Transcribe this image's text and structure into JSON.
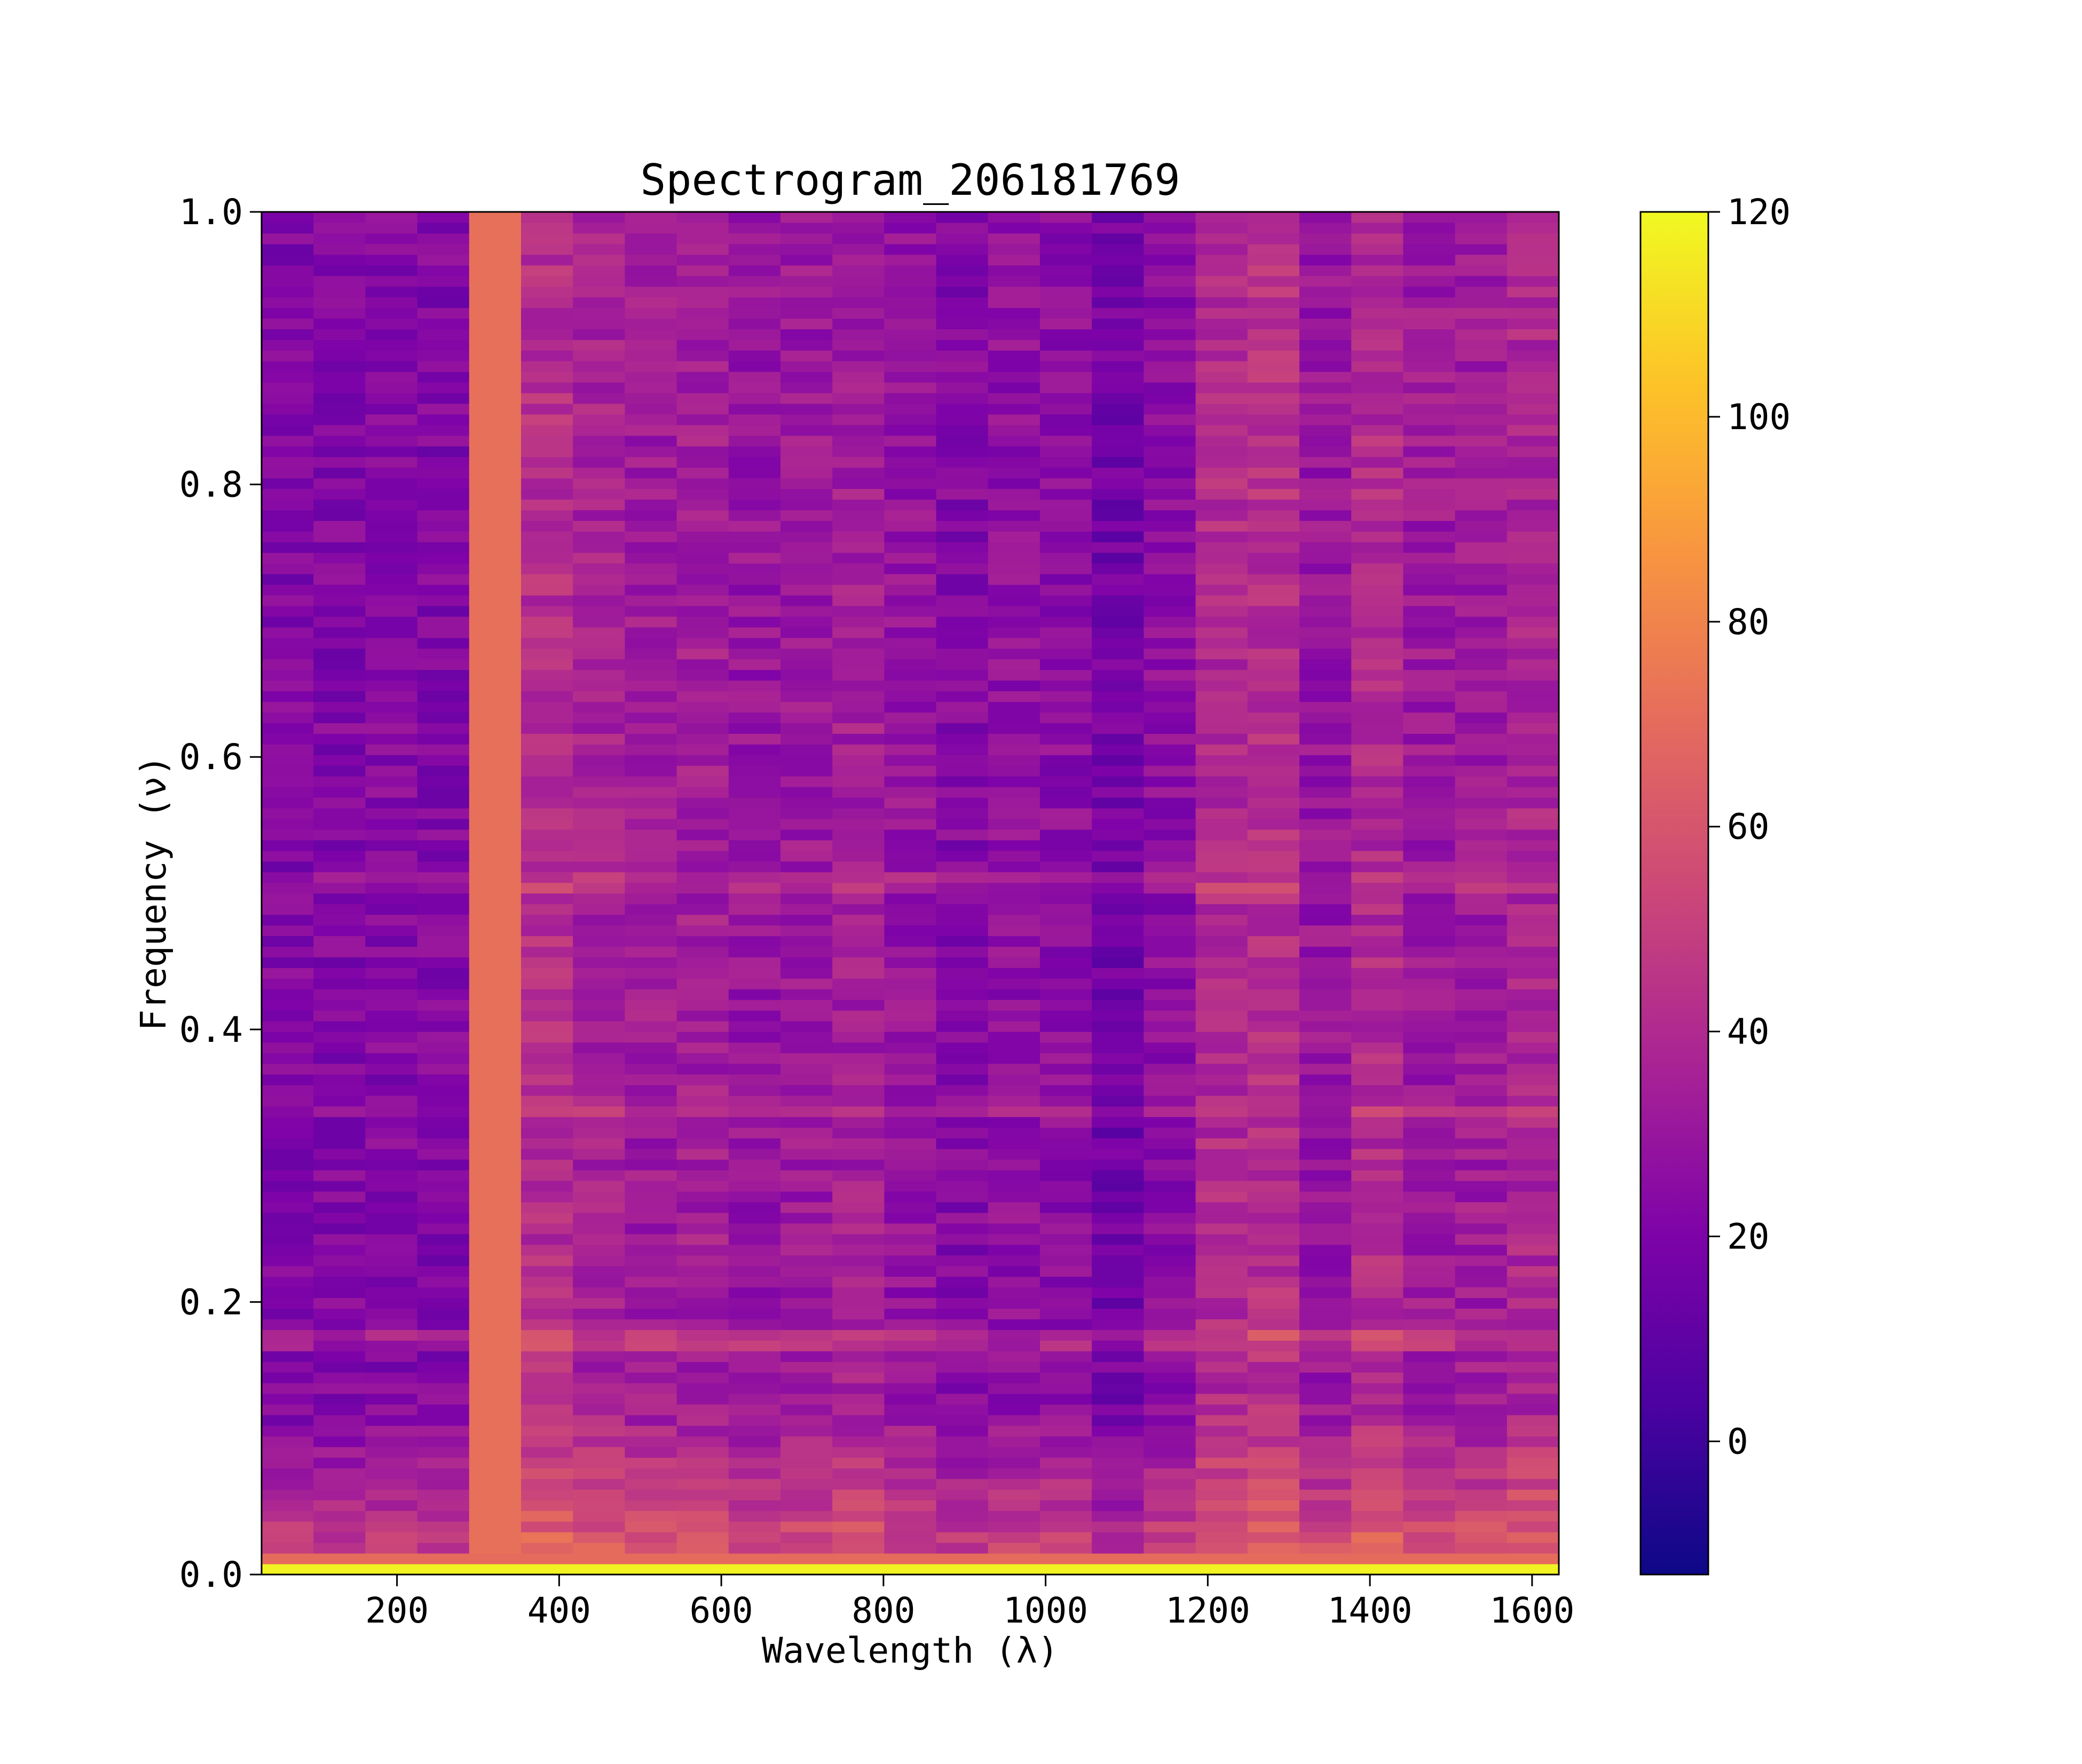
{
  "chart_data": {
    "type": "heatmap",
    "title": "Spectrogram_206181769",
    "xlabel": "Wavelength (λ)",
    "ylabel": "Frequency (ν)",
    "colormap": "plasma",
    "xlim": [
      33,
      1633
    ],
    "ylim": [
      0.0,
      1.0
    ],
    "xticks": [
      200,
      400,
      600,
      800,
      1000,
      1200,
      1400,
      1600
    ],
    "xtick_labels": [
      "200",
      "400",
      "600",
      "800",
      "1000",
      "1200",
      "1400",
      "1600"
    ],
    "yticks": [
      0.0,
      0.2,
      0.4,
      0.6,
      0.8,
      1.0
    ],
    "ytick_labels": [
      "0.0",
      "0.2",
      "0.4",
      "0.6",
      "0.8",
      "1.0"
    ],
    "colorbar": {
      "range": [
        -13,
        120
      ],
      "ticks": [
        0,
        20,
        40,
        60,
        80,
        100,
        120
      ],
      "tick_labels": [
        "0",
        "20",
        "40",
        "60",
        "80",
        "100",
        "120"
      ]
    },
    "grid": false,
    "columns": {
      "wavelength_centers": [
        65,
        129,
        193,
        257,
        321,
        385,
        449,
        513,
        577,
        641,
        705,
        769,
        833,
        897,
        961,
        1025,
        1089,
        1153,
        1217,
        1281,
        1345,
        1409,
        1473,
        1537,
        1601
      ],
      "mean_intensity": [
        22,
        22,
        23,
        22,
        72,
        42,
        36,
        33,
        34,
        30,
        31,
        34,
        29,
        23,
        27,
        26,
        17,
        26,
        40,
        43,
        30,
        40,
        32,
        33,
        38
      ]
    },
    "frequency_rows": {
      "count": 128,
      "bottom_row_intensity": 118,
      "second_row_intensity": 70,
      "enhanced_bands": [
        {
          "frequency": 0.17,
          "delta": 12
        },
        {
          "frequency": 0.34,
          "delta": 8
        },
        {
          "frequency": 0.51,
          "delta": 8
        }
      ],
      "low_frequency_rise_below": 0.12
    }
  }
}
